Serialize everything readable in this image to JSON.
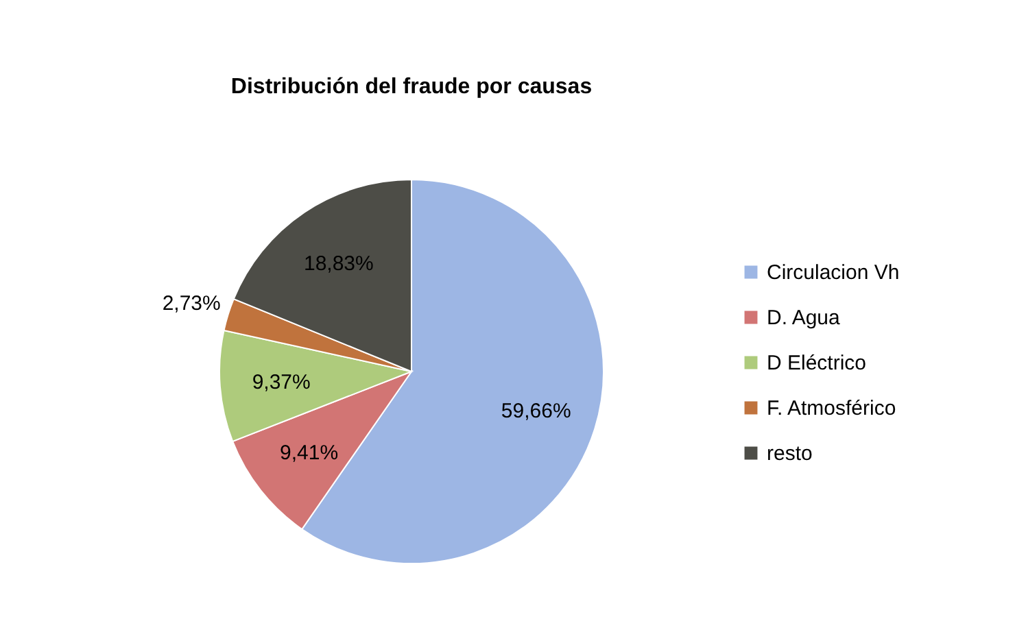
{
  "chart_data": {
    "type": "pie",
    "title": "Distribución del fraude  por causas",
    "categories": [
      "Circulacion Vh",
      "D. Agua",
      "D Eléctrico",
      "F. Atmosférico",
      "resto"
    ],
    "values": [
      59.66,
      9.41,
      9.37,
      2.73,
      18.83
    ],
    "colors": [
      "#9db6e4",
      "#d27574",
      "#aecb7c",
      "#c0733d",
      "#4d4d47"
    ],
    "value_labels": [
      "59,66%",
      "9,41%",
      "9,37%",
      "2,73%",
      "18,83%"
    ],
    "legend": "right"
  }
}
